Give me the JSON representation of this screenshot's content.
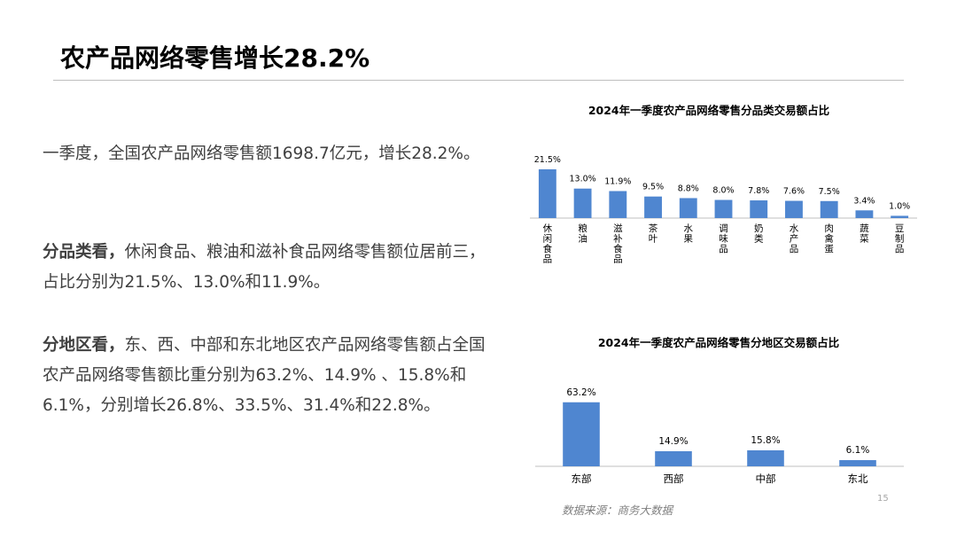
{
  "slide": {
    "title": "农产品网络零售增长28.2%",
    "page_number": "15",
    "source": "数据来源：商务大数据"
  },
  "body": {
    "p1": "一季度，全国农产品网络零售额1698.7亿元，增长28.2%。",
    "p2_lead": "分品类看，",
    "p2_text": "休闲食品、粮油和滋补食品网络零售额位居前三，占比分别为21.5%、13.0%和11.9%。",
    "p3_lead": "分地区看，",
    "p3_text": "东、西、中部和东北地区农产品网络零售额占全国农产品网络零售额比重分别为63.2%、14.9% 、15.8%和6.1%，分别增长26.8%、33.5%、31.4%和22.8%。"
  },
  "colors": {
    "bar": "#4f86d0",
    "axis": "#bfbfbf"
  },
  "chart_data": [
    {
      "type": "bar",
      "title": "2024年一季度农产品网络零售分品类交易额占比",
      "categories": [
        "休闲食品",
        "粮油",
        "滋补食品",
        "茶叶",
        "水果",
        "调味品",
        "奶类",
        "水产品",
        "肉禽蛋",
        "蔬菜",
        "豆制品"
      ],
      "values": [
        21.5,
        13.0,
        11.9,
        9.5,
        8.8,
        8.0,
        7.8,
        7.6,
        7.5,
        3.4,
        1.0
      ],
      "labels": [
        "21.5%",
        "13.0%",
        "11.9%",
        "9.5%",
        "8.8%",
        "8.0%",
        "7.8%",
        "7.6%",
        "7.5%",
        "3.4%",
        "1.0%"
      ],
      "ylim": [
        0,
        25
      ],
      "grid": false
    },
    {
      "type": "bar",
      "title": "2024年一季度农产品网络零售分地区交易额占比",
      "categories": [
        "东部",
        "西部",
        "中部",
        "东北"
      ],
      "values": [
        63.2,
        14.9,
        15.8,
        6.1
      ],
      "labels": [
        "63.2%",
        "14.9%",
        "15.8%",
        "6.1%"
      ],
      "ylim": [
        0,
        70
      ],
      "grid": false
    }
  ]
}
